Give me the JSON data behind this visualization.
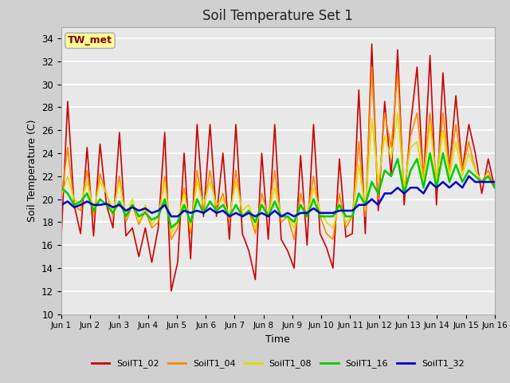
{
  "title": "Soil Temperature Set 1",
  "xlabel": "Time",
  "ylabel": "Soil Temperature (C)",
  "ylim": [
    10,
    35
  ],
  "yticks": [
    10,
    12,
    14,
    16,
    18,
    20,
    22,
    24,
    26,
    28,
    30,
    32,
    34
  ],
  "fig_facecolor": "#d0d0d0",
  "ax_facecolor": "#e8e8e8",
  "annotation_text": "TW_met",
  "annotation_color": "#8b0000",
  "annotation_bg": "#ffff99",
  "annotation_border": "#aaaaaa",
  "series": {
    "SoilT1_02": {
      "color": "#cc0000",
      "lw": 1.2,
      "data": [
        16.5,
        28.5,
        19.5,
        17.0,
        24.5,
        16.8,
        24.8,
        19.5,
        17.5,
        25.8,
        16.8,
        17.5,
        15.0,
        17.5,
        14.5,
        17.5,
        25.8,
        12.0,
        14.5,
        24.0,
        14.8,
        26.5,
        18.5,
        26.5,
        18.5,
        24.0,
        16.5,
        26.5,
        17.0,
        15.5,
        13.0,
        24.0,
        16.5,
        26.5,
        16.5,
        15.5,
        14.0,
        23.8,
        16.0,
        26.5,
        17.0,
        15.8,
        14.0,
        23.5,
        16.7,
        17.0,
        29.5,
        17.0,
        33.5,
        19.0,
        28.5,
        22.0,
        33.0,
        19.5,
        26.5,
        31.5,
        21.5,
        32.5,
        19.5,
        31.0,
        22.5,
        29.0,
        22.5,
        26.5,
        24.0,
        20.5,
        23.5,
        21.0
      ]
    },
    "SoilT1_04": {
      "color": "#ff8800",
      "lw": 1.2,
      "data": [
        20.0,
        24.5,
        19.5,
        19.0,
        22.5,
        18.5,
        22.2,
        20.5,
        18.5,
        22.0,
        18.0,
        19.5,
        17.8,
        19.0,
        17.5,
        18.0,
        22.0,
        16.5,
        17.5,
        21.0,
        17.0,
        22.5,
        19.0,
        22.5,
        19.0,
        20.5,
        18.0,
        22.5,
        18.5,
        19.0,
        17.0,
        20.5,
        18.5,
        22.5,
        18.0,
        18.5,
        16.5,
        20.5,
        18.5,
        22.0,
        18.5,
        17.0,
        16.5,
        20.5,
        17.5,
        18.5,
        25.0,
        18.5,
        31.5,
        20.0,
        27.5,
        24.5,
        31.0,
        20.5,
        25.5,
        27.5,
        22.0,
        27.5,
        21.5,
        27.5,
        22.5,
        26.5,
        22.5,
        25.0,
        22.5,
        21.5,
        22.5,
        21.0
      ]
    },
    "SoilT1_08": {
      "color": "#dddd00",
      "lw": 1.2,
      "data": [
        20.2,
        22.0,
        20.0,
        19.5,
        21.5,
        19.0,
        21.5,
        20.5,
        19.0,
        21.5,
        18.5,
        20.0,
        18.0,
        19.5,
        17.8,
        18.5,
        21.5,
        17.0,
        18.0,
        20.5,
        17.5,
        21.5,
        19.5,
        21.5,
        19.5,
        20.0,
        18.5,
        21.5,
        19.0,
        19.5,
        17.5,
        19.5,
        18.5,
        21.0,
        18.5,
        18.5,
        17.5,
        19.5,
        18.5,
        21.0,
        19.0,
        18.0,
        17.5,
        19.5,
        18.0,
        18.5,
        23.0,
        19.0,
        27.0,
        21.5,
        25.5,
        23.5,
        27.5,
        21.0,
        24.5,
        25.0,
        21.5,
        26.5,
        21.5,
        26.0,
        22.0,
        25.0,
        22.0,
        24.0,
        22.5,
        21.5,
        22.0,
        21.0
      ]
    },
    "SoilT1_16": {
      "color": "#00cc00",
      "lw": 1.8,
      "data": [
        21.0,
        20.5,
        19.5,
        19.8,
        20.5,
        19.0,
        20.0,
        19.5,
        18.8,
        19.8,
        18.5,
        19.5,
        18.5,
        18.8,
        18.2,
        18.5,
        20.0,
        17.5,
        18.0,
        19.5,
        18.0,
        20.0,
        18.8,
        19.8,
        19.0,
        19.5,
        18.5,
        19.5,
        18.5,
        19.0,
        18.0,
        19.5,
        18.5,
        19.8,
        18.5,
        18.5,
        18.0,
        19.5,
        18.5,
        20.0,
        18.5,
        18.5,
        18.5,
        19.5,
        18.5,
        18.5,
        20.5,
        19.5,
        21.5,
        20.5,
        22.5,
        22.0,
        23.5,
        20.5,
        22.5,
        23.5,
        21.0,
        24.0,
        21.0,
        24.0,
        21.5,
        23.0,
        21.5,
        22.5,
        22.0,
        21.5,
        22.0,
        21.0
      ]
    },
    "SoilT1_32": {
      "color": "#0000cc",
      "lw": 1.8,
      "data": [
        19.5,
        19.8,
        19.3,
        19.5,
        19.8,
        19.5,
        19.5,
        19.6,
        19.3,
        19.5,
        19.0,
        19.3,
        19.0,
        19.2,
        18.8,
        19.0,
        19.5,
        18.5,
        18.5,
        19.0,
        18.8,
        19.0,
        18.8,
        19.2,
        18.8,
        19.0,
        18.5,
        18.8,
        18.5,
        18.8,
        18.5,
        18.8,
        18.5,
        19.0,
        18.5,
        18.8,
        18.5,
        18.8,
        18.8,
        19.2,
        18.8,
        18.8,
        18.8,
        19.0,
        19.0,
        19.0,
        19.5,
        19.5,
        20.0,
        19.5,
        20.5,
        20.5,
        21.0,
        20.5,
        21.0,
        21.0,
        20.5,
        21.5,
        21.0,
        21.5,
        21.0,
        21.5,
        21.0,
        22.0,
        21.5,
        21.5,
        21.5,
        21.5
      ]
    }
  },
  "x_tick_labels": [
    "Jun 1",
    "Jun 2",
    "Jun 3",
    "Jun 4",
    "Jun 5",
    "Jun 6",
    "Jun 7",
    "Jun 8",
    "Jun 9",
    "Jun 10",
    "Jun 11",
    "Jun 12",
    "Jun 13",
    "Jun 14",
    "Jun 15",
    "Jun 16"
  ],
  "n_points": 68,
  "legend_order": [
    "SoilT1_02",
    "SoilT1_04",
    "SoilT1_08",
    "SoilT1_16",
    "SoilT1_32"
  ]
}
